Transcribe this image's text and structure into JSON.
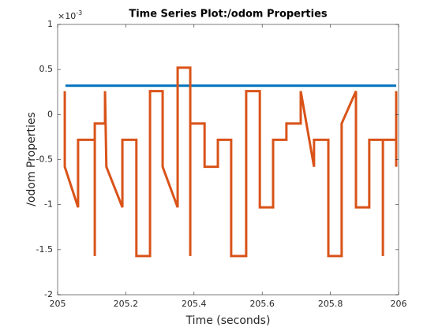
{
  "chart_data": {
    "type": "line",
    "title": "Time Series Plot:/odom Properties",
    "x_label": "Time (seconds)",
    "y_label": "/odom Properties",
    "y_scale_label": {
      "base": "×10",
      "exponent": "-3"
    },
    "xlim": [
      205,
      206
    ],
    "xticks": [
      205,
      205.2,
      205.4,
      205.6,
      205.8,
      206
    ],
    "ylim": [
      -2,
      1
    ],
    "yticks": [
      -2,
      -1.5,
      -1,
      -0.5,
      0,
      0.5,
      1
    ],
    "grid": false,
    "series": [
      {
        "color": "#0072bd",
        "x": [
          205.023,
          205.993
        ],
        "values": [
          0.32,
          0.32
        ]
      },
      {
        "color": "#d95319",
        "x": [
          205.021,
          205.021,
          205.06,
          205.06,
          205.109,
          205.109,
          205.109,
          205.139,
          205.139,
          205.143,
          205.19,
          205.19,
          205.231,
          205.231,
          205.271,
          205.271,
          205.308,
          205.308,
          205.352,
          205.352,
          205.389,
          205.389,
          205.389,
          205.431,
          205.431,
          205.47,
          205.47,
          205.509,
          205.509,
          205.553,
          205.553,
          205.593,
          205.593,
          205.632,
          205.632,
          205.671,
          205.671,
          205.713,
          205.713,
          205.752,
          205.752,
          205.794,
          205.794,
          205.833,
          205.833,
          205.875,
          205.875,
          205.914,
          205.914,
          205.954,
          205.954,
          205.954,
          205.993,
          205.993,
          205.993
        ],
        "values": [
          0.26,
          -0.58,
          -1.03,
          -0.28,
          -0.28,
          -1.57,
          -0.1,
          -0.1,
          0.26,
          -0.58,
          -1.03,
          -0.28,
          -0.28,
          -1.57,
          -1.57,
          0.26,
          0.26,
          -0.58,
          -1.03,
          0.52,
          0.52,
          -1.57,
          -0.1,
          -0.1,
          -0.58,
          -0.58,
          -0.28,
          -0.28,
          -1.57,
          -1.57,
          0.26,
          0.26,
          -1.03,
          -1.03,
          -0.28,
          -0.28,
          -0.1,
          -0.1,
          0.26,
          -0.58,
          -0.28,
          -0.28,
          -1.57,
          -1.57,
          -0.1,
          0.26,
          -1.03,
          -1.03,
          -0.28,
          -0.28,
          -1.57,
          -0.28,
          -0.28,
          0.26,
          -0.58
        ]
      }
    ]
  }
}
